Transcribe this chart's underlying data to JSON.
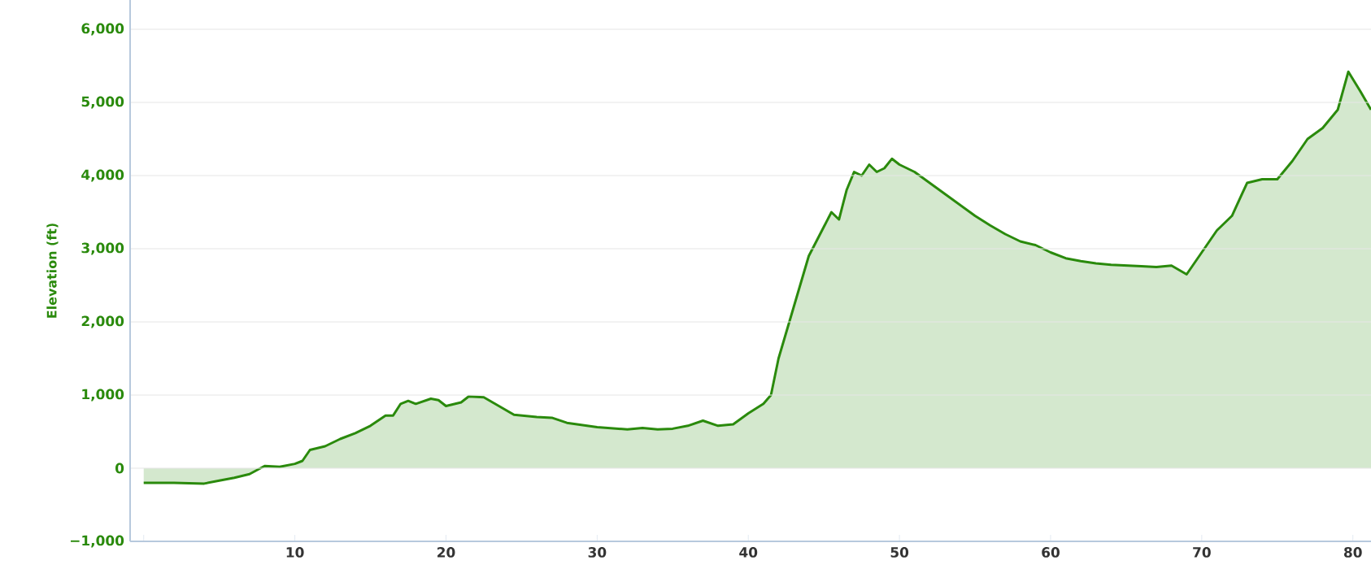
{
  "chart_data": {
    "type": "area",
    "ylabel": "Elevation (ft)",
    "color": "#2a8a0c",
    "grid": "y",
    "xlim": [
      -0.9,
      81.2
    ],
    "ylim": [
      -1000,
      6400
    ],
    "xticks": [
      {
        "value": 0,
        "label": null
      },
      10,
      20,
      30,
      40,
      50,
      60,
      70,
      80
    ],
    "yticks": [
      {
        "value": -1000,
        "label": "−1,000"
      },
      0,
      {
        "value": 1000,
        "label": "1,000"
      },
      {
        "value": 2000,
        "label": "2,000"
      },
      {
        "value": 3000,
        "label": "3,000"
      },
      {
        "value": 4000,
        "label": "4,000"
      },
      {
        "value": 5000,
        "label": "5,000"
      },
      {
        "value": 6000,
        "label": "6,000"
      }
    ],
    "x": [
      0,
      2,
      4,
      5,
      6,
      7,
      8,
      9,
      10,
      10.5,
      11,
      12,
      13,
      14,
      15,
      16,
      16.5,
      17,
      17.5,
      18,
      19,
      19.5,
      20,
      21,
      21.5,
      22.5,
      23.5,
      24.5,
      26,
      27,
      28,
      30,
      32,
      33,
      34,
      35,
      36,
      37,
      38,
      39,
      40,
      41,
      41.5,
      42,
      43,
      44,
      45,
      45.5,
      46,
      46.5,
      47,
      47.5,
      48,
      48.5,
      49,
      49.5,
      50,
      51,
      52,
      53,
      54,
      55,
      56,
      57,
      58,
      59,
      60,
      61,
      62,
      63,
      64,
      65,
      66,
      67,
      68,
      69,
      70,
      71,
      72,
      73,
      74,
      75,
      76,
      77,
      78,
      79,
      79.7,
      80.5,
      81.2
    ],
    "values": [
      -200,
      -200,
      -210,
      -170,
      -130,
      -80,
      30,
      20,
      60,
      100,
      250,
      300,
      400,
      480,
      580,
      720,
      720,
      880,
      920,
      880,
      950,
      930,
      850,
      900,
      980,
      970,
      850,
      730,
      700,
      690,
      620,
      560,
      530,
      550,
      530,
      540,
      580,
      650,
      580,
      600,
      750,
      880,
      1000,
      1500,
      2200,
      2900,
      3300,
      3500,
      3400,
      3800,
      4050,
      4000,
      4150,
      4050,
      4100,
      4230,
      4150,
      4050,
      3900,
      3750,
      3600,
      3450,
      3320,
      3200,
      3100,
      3050,
      2950,
      2870,
      2830,
      2800,
      2780,
      2770,
      2760,
      2750,
      2770,
      2650,
      2950,
      3250,
      3450,
      3900,
      3950,
      3950,
      4200,
      4500,
      4650,
      4900,
      5420,
      5150,
      4900
    ]
  }
}
